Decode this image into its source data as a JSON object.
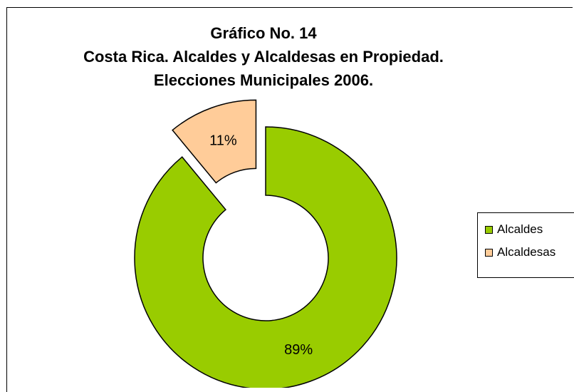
{
  "chart_data": {
    "type": "pie",
    "variant": "doughnut",
    "title_lines": [
      "Gráfico No. 14",
      "Costa Rica. Alcaldes y Alcaldesas en Propiedad.",
      "Elecciones Municipales 2006."
    ],
    "series": [
      {
        "slices": [
          {
            "name": "Alcaldes",
            "value": 89,
            "label": "89%",
            "color": "#99CC00",
            "exploded": false
          },
          {
            "name": "Alcaldesas",
            "value": 11,
            "label": "11%",
            "color": "#FFCC99",
            "exploded": true
          }
        ]
      }
    ],
    "legend": {
      "placement": "right",
      "items": [
        "Alcaldes",
        "Alcaldesas"
      ]
    },
    "start_angle_deg": 0
  }
}
